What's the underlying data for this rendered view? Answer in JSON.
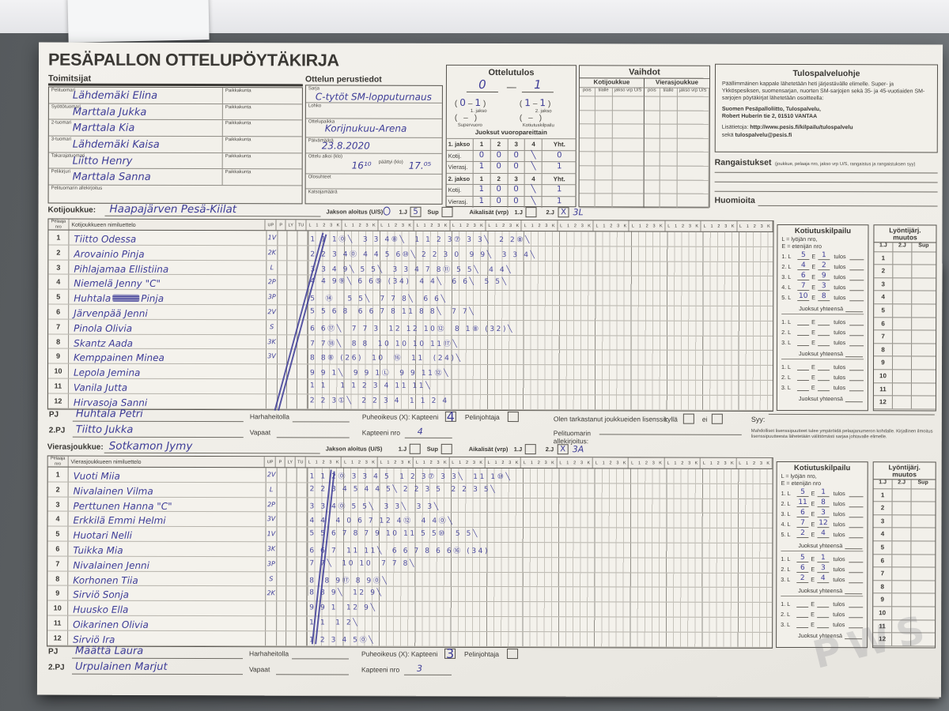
{
  "photo": {
    "watermark": "PWS"
  },
  "title": "PESÄPALLON OTTELUPÖYTÄKIRJA",
  "labels": {
    "j1": "1.J",
    "j2": "2.J",
    "sup": "Sup",
    "jakson_aloitus": "Jakson aloitus (U/S)",
    "aikalisat": "Aikalisät (vrp)",
    "pj": "PJ",
    "pj2": "2.PJ",
    "harha": "Harhaheitolla",
    "vapaat": "Vapaat",
    "puheoikeus": "Puheoikeus (X): Kapteeni",
    "pelinjohtaja": "Pelinjohtaja",
    "kapteeni_nro": "Kapteeni nro",
    "kotijoukkue": "Kotijoukkue:",
    "vierasjoukkue": "Vierasjoukkue:"
  },
  "officials": {
    "heading": "Toimitsijat",
    "paikkakunta": "Paikkakunta",
    "rows": [
      {
        "label": "Pelituomari",
        "name": "Lähdemäki Elina"
      },
      {
        "label": "Syöttötuomari",
        "name": "Marttala Jukka"
      },
      {
        "label": "2-tuomari",
        "name": "Marttala Kia"
      },
      {
        "label": "3-tuomari",
        "name": "Lähdemäki Kaisa"
      },
      {
        "label": "Takarajatuomari",
        "name": "Liitto Henry"
      },
      {
        "label": "Pelikirjuri",
        "name": "Marttala Sanna"
      }
    ],
    "signature": "Pelituomarin allekirjoitus"
  },
  "match_info": {
    "heading": "Ottelun perustiedot",
    "sarja_label": "Sarja",
    "sarja": "C-tytöt SM-lopputurnaus",
    "lohko_label": "Lohko",
    "paikka_label": "Ottelupaikka",
    "paikka": "Korijnukuu-Arena",
    "pvm_label": "Päivämäärä",
    "pvm": "23.8.2020",
    "alkoi_label": "Ottelu alkoi (klo)",
    "alkoi": "16¹⁰",
    "paattyi_label": "päättyi (klo)",
    "paattyi": "17.⁰⁵",
    "olosuhteet_label": "Olosuhteet",
    "katsojamaara_label": "Katsojamäärä"
  },
  "result": {
    "heading": "Ottelutulos",
    "home": "0",
    "away": "1",
    "dash": "—",
    "paren_open": "(",
    "paren_close": ")",
    "inner_dash": "–",
    "p1_home": "0",
    "p1_away": "1",
    "p1_label": "1. jakso",
    "p2_home": "1",
    "p2_away": "1",
    "p2_label": "2. jakso",
    "super_value": "–",
    "super_label": "Supervuoro",
    "kk_value": "–",
    "kk_label": "Kotiutuskilpailu",
    "runs_heading": "Juoksut vuoropareittain",
    "cols": [
      "1",
      "2",
      "3",
      "4",
      "Yht."
    ],
    "koti_label": "Kotij.",
    "vieras_label": "Vierasj.",
    "periods": [
      {
        "label": "1. jakso",
        "koti": [
          "0",
          "0",
          "0",
          "╲",
          "0"
        ],
        "vieras": [
          "1",
          "0",
          "0",
          "╲",
          "1"
        ]
      },
      {
        "label": "2. jakso",
        "koti": [
          "1",
          "0",
          "0",
          "╲",
          "1"
        ],
        "vieras": [
          "1",
          "0",
          "0",
          "╲",
          "1"
        ]
      }
    ]
  },
  "substitutions": {
    "heading": "Vaihdot",
    "home": "Kotijoukkue",
    "away": "Vierasjoukkue",
    "cols": [
      "pois",
      "tilalle",
      "jakso vrp U/S"
    ],
    "empty_rows": 8
  },
  "info_box": {
    "heading": "Tulospalveluohje",
    "body": "Päällimmäinen kappale lähetetään heti järjestävälle elimelle. Super- ja Ykköspesiksen, suomensarjan, nuorten SM-sarjojen sekä 35- ja 45-vuotiaiden SM-sarjojen pöytäkirjat lähetetään osoitteella:",
    "addr1": "Suomen Pesäpalloliitto, Tulospalvelu,",
    "addr2": "Robert Huberin tie 2, 01510 VANTAA",
    "more_label": "Lisätietoja:",
    "url": "http://www.pesis.fi/kilpailu/tulospalvelu",
    "seka": "sekä",
    "email": "tulospalvelu@pesis.fi"
  },
  "penalties": {
    "label": "Rangaistukset",
    "hint": "(joukkue, pelaaja nro, jakso vrp U/S, rangaistus ja rangaistuksen syy)"
  },
  "notes_label": "Huomioita",
  "license": {
    "text": "Olen tarkastanut joukkueiden lisenssit:",
    "yes": "kyllä",
    "no": "ei",
    "sig1": "Pelituomarin",
    "sig2": "allekirjoitus:",
    "syy": "Syy:",
    "fine": "Mahdolliset lisenssipuutteet tulee ympäröidä pelaajanumeron kohdalle. Kirjallinen ilmoitus lisenssipuutteesta lähetetään välittömästi sarjaa johtavalle elimelle."
  },
  "grid": {
    "pelaaja1": "Pelaaja",
    "pelaaja2": "nro",
    "small_cols": [
      "UP",
      "P",
      "LY",
      "TU"
    ],
    "inning": [
      "L",
      "1",
      "2",
      "3",
      "K"
    ],
    "groups": 13
  },
  "kotiutus": {
    "heading": "Kotiutuskilpailu",
    "legend1": "L = lyöjän nro,",
    "legend2": "E = etenijän nro",
    "l": "L",
    "e": "E",
    "tulos": "tulos",
    "sum": "Juoksut yhteensä"
  },
  "lyonti": {
    "heading1": "Lyöntijärj.",
    "heading2": "muutos",
    "cols": [
      "1.J",
      "2.J",
      "Sup"
    ],
    "rows": [
      "1",
      "2",
      "3",
      "4",
      "5",
      "6",
      "7",
      "8",
      "9",
      "10",
      "11",
      "12"
    ]
  },
  "home_team": {
    "name": "Haapajärven Pesä-Kiilat",
    "roster_heading": "Kotijoukkueen nimiluettelo",
    "aloitus_1j": "5",
    "aloitus_sup": "",
    "aloitus_circled": "S",
    "aika_1j": "",
    "aika_2j": "X",
    "aika_2j_note": "3L",
    "pj": "Huhtala Petri",
    "pj2": "Tiitto Jukka",
    "kapteeni_box": "4",
    "kapteeni": "4",
    "players": [
      {
        "nro": "1",
        "name": "Tiitto Odessa",
        "up": "1V",
        "marks": "1 1 1⓪╲  3 3 4⑧╲  1 1 2 3⑦ 3 3╲  2 2⑧╲"
      },
      {
        "nro": "2",
        "name": "Arovainio Pinja",
        "up": "2K",
        "marks": "2 2 3 4⓪ 4 4 5 6⑩╲ 2 2 3 0  9 9╲  3 3 4╲"
      },
      {
        "nro": "3",
        "name": "Pihlajamaa Ellistiina",
        "up": "L",
        "marks": "3 3 4 9╲ 5 5╲  3 3 4 7 8⑪ 5 5╲  4 4╲"
      },
      {
        "nro": "4",
        "name": "Niemelä Jenny  \"C\"",
        "up": "2P",
        "marks": "4 4 9⑨╲ 6 6⑤ (34)  4 4╲  6 6╲  5 5╲"
      },
      {
        "nro": "5",
        "name": "Huhtala Pinja",
        "up": "3P",
        "blot": true,
        "marks": "5  ⑭   5 5╲  7 7 8╲  6 6╲"
      },
      {
        "nro": "6",
        "name": "Järvenpää Jenni",
        "up": "2V",
        "marks": "5 5 6 8  6 6 7 8 11 8 8╲  7 7╲"
      },
      {
        "nro": "7",
        "name": "Pinola Olivia",
        "up": "S",
        "marks": "6 6⑰╲  7 7 3  12 12 10⑫  8 1⑧ (32)╲"
      },
      {
        "nro": "8",
        "name": "Skantz Aada",
        "up": "3K",
        "marks": "7 7⑱╲  8 8  10 10 10 11⑰╲"
      },
      {
        "nro": "9",
        "name": "Kemppainen Minea",
        "up": "3V",
        "marks": "8 8⑧ (26)  10  ⑯  11  (24)╲"
      },
      {
        "nro": "10",
        "name": "Lepola Jemina",
        "up": "",
        "marks": "9 9 1╲  9 9 1Ⓛ  9 9 11⑫╲"
      },
      {
        "nro": "11",
        "name": "Vanila Jutta",
        "up": "",
        "marks": "1 1   1 1 2 3 4 11 11╲"
      },
      {
        "nro": "12",
        "name": "Hirvasoja Sanni",
        "up": "",
        "marks": "2 2 3①╲  2 2 3 4  1 1 2 4"
      }
    ],
    "kotiutus_groups": [
      [
        {
          "l": "5",
          "e": "1"
        },
        {
          "l": "4",
          "e": "2"
        },
        {
          "l": "6",
          "e": "9"
        },
        {
          "l": "7",
          "e": "3"
        },
        {
          "l": "10",
          "e": "8"
        }
      ],
      [
        {
          "l": "",
          "e": ""
        },
        {
          "l": "",
          "e": ""
        },
        {
          "l": "",
          "e": ""
        }
      ],
      [
        {
          "l": "",
          "e": ""
        },
        {
          "l": "",
          "e": ""
        },
        {
          "l": "",
          "e": ""
        }
      ]
    ]
  },
  "away_team": {
    "name": "Sotkamon Jymy",
    "roster_heading": "Vierasjoukkueen nimiluettelo",
    "aloitus_1j": "",
    "aloitus_sup": "",
    "aloitus_circled": "",
    "aika_1j": "",
    "aika_2j": "X",
    "aika_2j_note": "3A",
    "pj": "Määttä Laura",
    "pj2": "Urpulainen Marjut",
    "kapteeni_box": "3",
    "kapteeni": "3",
    "players": [
      {
        "nro": "1",
        "name": "Vuoti Miia",
        "up": "2V",
        "marks": "1 1 2⓪ 3 3 4 5  1 2 3⑦ 3 3╲  11 1⑩╲"
      },
      {
        "nro": "2",
        "name": "Nivalainen Vilma",
        "up": "L",
        "marks": "2 2 3 4 5 4 4 5╲ 2 2 3 5  2 2 3 5╲"
      },
      {
        "nro": "3",
        "name": "Perttunen Hanna  \"C\"",
        "up": "2P",
        "marks": "3 3 4⓪ 5 5╲  3 3╲  3 3╲"
      },
      {
        "nro": "4",
        "name": "Erkkilä Emmi Helmi",
        "up": "3V",
        "marks": "4 4  4 0 6 7 12 4⑫  4 4⓪╲"
      },
      {
        "nro": "5",
        "name": "Huotari Nelli",
        "up": "1V",
        "marks": "5 5 6 7 8 7 9 10 11 5 5⑩  5 5╲"
      },
      {
        "nro": "6",
        "name": "Tuikka Mia",
        "up": "3K",
        "marks": "6 6 7  11 11╲  6 6 7 8 6 6⑯ (34)"
      },
      {
        "nro": "7",
        "name": "Nivalainen Jenni",
        "up": "3P",
        "marks": "7 7╲  10 10  7 7 8╲"
      },
      {
        "nro": "8",
        "name": "Korhonen Tiia",
        "up": "S",
        "marks": "8  8 9⑰ 8 9⓪╲"
      },
      {
        "nro": "9",
        "name": "Sirviö Sonja",
        "up": "2K",
        "marks": "8 8 9╲  12 9╲"
      },
      {
        "nro": "10",
        "name": "Huusko Ella",
        "up": "",
        "marks": "9 9 1  12 9╲"
      },
      {
        "nro": "11",
        "name": "Oikarinen Olivia",
        "up": "",
        "marks": "1 1  1 2╲"
      },
      {
        "nro": "12",
        "name": "Sirviö Ira",
        "up": "",
        "marks": "1 2 3 4 5⓪╲"
      }
    ],
    "kotiutus_groups": [
      [
        {
          "l": "5",
          "e": "1"
        },
        {
          "l": "11",
          "e": "8"
        },
        {
          "l": "6",
          "e": "3"
        },
        {
          "l": "7",
          "e": "12"
        },
        {
          "l": "2",
          "e": "4"
        }
      ],
      [
        {
          "l": "5",
          "e": "1"
        },
        {
          "l": "6",
          "e": "3"
        },
        {
          "l": "2",
          "e": "4"
        }
      ],
      [
        {
          "l": "",
          "e": ""
        },
        {
          "l": "",
          "e": ""
        },
        {
          "l": "",
          "e": ""
        }
      ]
    ]
  }
}
